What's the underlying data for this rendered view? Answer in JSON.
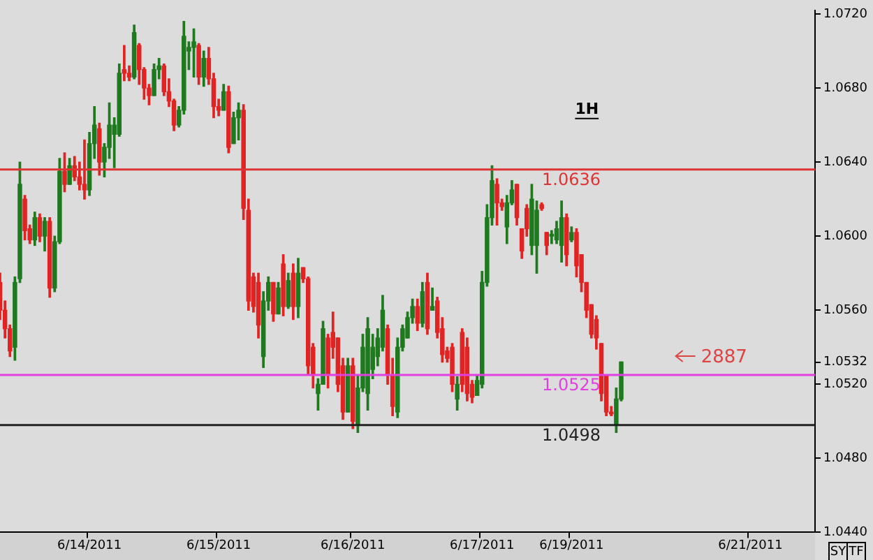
{
  "chart_data": {
    "type": "candlestick",
    "categories": [
      null,
      null,
      null,
      null,
      null,
      null,
      null,
      null,
      null,
      null,
      null,
      null,
      null,
      null,
      null,
      null,
      null,
      null,
      "6/14/2011",
      null,
      null,
      null,
      null,
      null,
      null,
      null,
      null,
      null,
      null,
      null,
      null,
      null,
      null,
      null,
      null,
      null,
      null,
      null,
      null,
      null,
      null,
      null,
      null,
      null,
      "6/15/2011",
      null,
      null,
      null,
      null,
      null,
      null,
      null,
      null,
      null,
      null,
      null,
      null,
      null,
      null,
      null,
      null,
      null,
      null,
      null,
      null,
      null,
      null,
      null,
      null,
      null,
      null,
      "6/16/2011",
      null,
      null,
      null,
      null,
      null,
      null,
      null,
      null,
      null,
      null,
      null,
      null,
      null,
      null,
      null,
      null,
      null,
      null,
      null,
      null,
      null,
      null,
      null,
      null,
      null,
      "6/17/2011",
      null,
      null,
      null,
      null,
      null,
      null,
      null,
      null,
      null,
      null,
      null,
      null,
      null,
      null,
      null,
      null,
      null,
      "6/19/2011",
      null,
      null,
      null,
      null,
      null,
      null,
      null,
      null,
      null,
      null,
      null,
      null,
      null,
      null,
      null,
      null,
      null,
      null,
      null,
      null,
      null,
      null,
      null,
      null,
      null,
      null,
      null,
      null,
      null,
      null,
      null,
      null,
      null,
      null,
      null,
      "6/21/2011",
      null,
      null,
      null,
      null,
      null,
      null,
      null,
      null,
      null,
      null,
      null,
      null,
      null
    ],
    "ohlc": [
      [
        1.0575,
        1.058,
        1.0555,
        1.056
      ],
      [
        1.056,
        1.0565,
        1.0545,
        1.055
      ],
      [
        1.055,
        1.0552,
        1.0535,
        1.0538
      ],
      [
        1.054,
        1.0578,
        1.0533,
        1.0575
      ],
      [
        1.0577,
        1.064,
        1.0575,
        1.0628
      ],
      [
        1.062,
        1.0622,
        1.0598,
        1.0603
      ],
      [
        1.0604,
        1.0606,
        1.0596,
        1.0598
      ],
      [
        1.0598,
        1.0613,
        1.0595,
        1.061
      ],
      [
        1.061,
        1.0612,
        1.0597,
        1.06
      ],
      [
        1.06,
        1.061,
        1.0592,
        1.0608
      ],
      [
        1.0608,
        1.061,
        1.0567,
        1.0572
      ],
      [
        1.0572,
        1.06,
        1.057,
        1.0597
      ],
      [
        1.0597,
        1.0642,
        1.0596,
        1.0635
      ],
      [
        1.0635,
        1.0645,
        1.0624,
        1.0628
      ],
      [
        1.0628,
        1.0642,
        1.0628,
        1.0638
      ],
      [
        1.0638,
        1.0643,
        1.063,
        1.0632
      ],
      [
        1.0632,
        1.064,
        1.0625,
        1.0628
      ],
      [
        1.0628,
        1.0652,
        1.062,
        1.0625
      ],
      [
        1.0625,
        1.0656,
        1.0622,
        1.065
      ],
      [
        1.065,
        1.067,
        1.0642,
        1.066
      ],
      [
        1.0658,
        1.0661,
        1.0633,
        1.064
      ],
      [
        1.064,
        1.065,
        1.0632,
        1.0648
      ],
      [
        1.0648,
        1.0672,
        1.0642,
        1.066
      ],
      [
        1.0655,
        1.0664,
        1.0637,
        1.066
      ],
      [
        1.0655,
        1.0693,
        1.0654,
        1.0688
      ],
      [
        1.069,
        1.0703,
        1.0684,
        1.0688
      ],
      [
        1.0688,
        1.0692,
        1.0684,
        1.0686
      ],
      [
        1.0686,
        1.0714,
        1.0685,
        1.071
      ],
      [
        1.0703,
        1.0704,
        1.0682,
        1.069
      ],
      [
        1.069,
        1.0691,
        1.0674,
        1.068
      ],
      [
        1.068,
        1.0682,
        1.0671,
        1.0676
      ],
      [
        1.0676,
        1.0693,
        1.0676,
        1.069
      ],
      [
        1.069,
        1.0696,
        1.0685,
        1.0692
      ],
      [
        1.0692,
        1.0693,
        1.0676,
        1.0678
      ],
      [
        1.0678,
        1.0685,
        1.067,
        1.0673
      ],
      [
        1.0673,
        1.0674,
        1.0657,
        1.066
      ],
      [
        1.066,
        1.067,
        1.0659,
        1.0668
      ],
      [
        1.0668,
        1.0716,
        1.0666,
        1.0708
      ],
      [
        1.07,
        1.0705,
        1.069,
        1.0702
      ],
      [
        1.0702,
        1.0712,
        1.0686,
        1.0705
      ],
      [
        1.0703,
        1.0704,
        1.0682,
        1.0686
      ],
      [
        1.0686,
        1.07,
        1.0681,
        1.0696
      ],
      [
        1.0696,
        1.0702,
        1.0682,
        1.0685
      ],
      [
        1.0685,
        1.0688,
        1.0664,
        1.067
      ],
      [
        1.067,
        1.0674,
        1.0665,
        1.0668
      ],
      [
        1.0668,
        1.0682,
        1.0668,
        1.0678
      ],
      [
        1.0678,
        1.0681,
        1.0645,
        1.0648
      ],
      [
        1.065,
        1.0667,
        1.065,
        1.0664
      ],
      [
        1.0664,
        1.0672,
        1.0652,
        1.0668
      ],
      [
        1.0668,
        1.0671,
        1.0609,
        1.0615
      ],
      [
        1.0614,
        1.062,
        1.056,
        1.0565
      ],
      [
        1.0578,
        1.058,
        1.0559,
        1.0562
      ],
      [
        1.0575,
        1.058,
        1.0545,
        1.0552
      ],
      [
        1.0535,
        1.057,
        1.0529,
        1.0565
      ],
      [
        1.0565,
        1.0578,
        1.056,
        1.0575
      ],
      [
        1.0575,
        1.0575,
        1.0554,
        1.0558
      ],
      [
        1.0558,
        1.0575,
        1.0558,
        1.0572
      ],
      [
        1.0585,
        1.059,
        1.0557,
        1.0562
      ],
      [
        1.0562,
        1.058,
        1.0561,
        1.0576
      ],
      [
        1.058,
        1.0585,
        1.0555,
        1.0562
      ],
      [
        1.0562,
        1.0588,
        1.0556,
        1.058
      ],
      [
        1.0583,
        1.0583,
        1.0575,
        1.0577
      ],
      [
        1.0577,
        1.0578,
        1.0525,
        1.053
      ],
      [
        1.054,
        1.0542,
        1.0518,
        1.0525
      ],
      [
        1.0515,
        1.0523,
        1.0506,
        1.052
      ],
      [
        1.052,
        1.0554,
        1.052,
        1.055
      ],
      [
        1.0545,
        1.0547,
        1.0518,
        1.0525
      ],
      [
        1.0548,
        1.0559,
        1.0534,
        1.054
      ],
      [
        1.0545,
        1.0545,
        1.0516,
        1.052
      ],
      [
        1.053,
        1.0534,
        1.0501,
        1.0505
      ],
      [
        1.0505,
        1.0534,
        1.0505,
        1.053
      ],
      [
        1.053,
        1.0534,
        1.0496,
        1.05
      ],
      [
        1.0498,
        1.0525,
        1.0494,
        1.0518
      ],
      [
        1.0518,
        1.0547,
        1.0516,
        1.054
      ],
      [
        1.0515,
        1.0556,
        1.0506,
        1.055
      ],
      [
        1.0528,
        1.0547,
        1.0523,
        1.054
      ],
      [
        1.0535,
        1.055,
        1.053,
        1.0545
      ],
      [
        1.054,
        1.0568,
        1.0538,
        1.056
      ],
      [
        1.055,
        1.0552,
        1.052,
        1.0525
      ],
      [
        1.0525,
        1.0534,
        1.0503,
        1.0508
      ],
      [
        1.0505,
        1.0545,
        1.0502,
        1.054
      ],
      [
        1.054,
        1.0552,
        1.0538,
        1.055
      ],
      [
        1.0545,
        1.0559,
        1.0545,
        1.0556
      ],
      [
        1.0556,
        1.0566,
        1.0553,
        1.0562
      ],
      [
        1.0562,
        1.0566,
        1.0549,
        1.0553
      ],
      [
        1.0553,
        1.0575,
        1.0551,
        1.057
      ],
      [
        1.0575,
        1.058,
        1.0547,
        1.055
      ],
      [
        1.056,
        1.0572,
        1.056,
        1.0562
      ],
      [
        1.0565,
        1.0567,
        1.0545,
        1.0548
      ],
      [
        1.055,
        1.0556,
        1.0532,
        1.0536
      ],
      [
        1.0538,
        1.054,
        1.0532,
        1.0534
      ],
      [
        1.054,
        1.0542,
        1.0516,
        1.052
      ],
      [
        1.0512,
        1.0524,
        1.0506,
        1.052
      ],
      [
        1.0548,
        1.055,
        1.0516,
        1.052
      ],
      [
        1.054,
        1.0545,
        1.0511,
        1.0515
      ],
      [
        1.052,
        1.0522,
        1.051,
        1.0513
      ],
      [
        1.0514,
        1.0525,
        1.0514,
        1.0522
      ],
      [
        1.052,
        1.0581,
        1.0518,
        1.0575
      ],
      [
        1.0575,
        1.0617,
        1.0573,
        1.061
      ],
      [
        1.061,
        1.0638,
        1.0606,
        1.063
      ],
      [
        1.0628,
        1.0631,
        1.0606,
        1.0618
      ],
      [
        1.0618,
        1.062,
        1.0614,
        1.0616
      ],
      [
        1.0605,
        1.0622,
        1.0596,
        1.0618
      ],
      [
        1.0618,
        1.063,
        1.0617,
        1.0625
      ],
      [
        1.0628,
        1.0628,
        1.0606,
        1.061
      ],
      [
        1.0604,
        1.0604,
        1.0588,
        1.0592
      ],
      [
        1.0615,
        1.0617,
        1.06,
        1.0604
      ],
      [
        1.0595,
        1.0628,
        1.059,
        1.062
      ],
      [
        1.0595,
        1.0619,
        1.058,
        1.0614
      ],
      [
        1.0617,
        1.0618,
        1.0614,
        1.0615
      ],
      [
        1.0602,
        1.0602,
        1.059,
        1.0595
      ],
      [
        1.06,
        1.0603,
        1.0596,
        1.0601
      ],
      [
        1.0598,
        1.0608,
        1.0596,
        1.0604
      ],
      [
        1.0595,
        1.0619,
        1.0586,
        1.061
      ],
      [
        1.061,
        1.0612,
        1.0584,
        1.059
      ],
      [
        1.0598,
        1.0605,
        1.0597,
        1.0602
      ],
      [
        1.0602,
        1.0604,
        1.0578,
        1.0584
      ],
      [
        1.059,
        1.059,
        1.057,
        1.0575
      ],
      [
        1.0575,
        1.0575,
        1.0556,
        1.056
      ],
      [
        1.0563,
        1.0563,
        1.0545,
        1.0547
      ],
      [
        1.0555,
        1.0557,
        1.0539,
        1.0545
      ],
      [
        1.0542,
        1.0542,
        1.0511,
        1.0515
      ],
      [
        1.0525,
        1.0525,
        1.0503,
        1.0505
      ],
      [
        1.0505,
        1.0508,
        1.0503,
        1.0504
      ],
      [
        1.0498,
        1.0518,
        1.0494,
        1.0512
      ],
      [
        1.0512,
        1.0532,
        1.0511,
        1.0532
      ],
      null,
      null,
      null,
      null,
      null,
      null,
      null,
      null,
      null,
      null,
      null,
      null,
      null,
      null,
      null,
      null,
      null,
      null,
      null,
      null,
      null,
      null,
      null,
      null,
      null,
      null,
      null,
      null,
      null,
      null,
      null,
      null,
      null,
      null,
      null,
      null,
      null,
      null,
      null
    ],
    "colors": [
      "#e02424",
      "#e02424",
      "#e02424",
      "#1f7a1f",
      "#1f7a1f",
      "#e02424",
      "#e02424",
      "#1f7a1f",
      "#e02424",
      "#1f7a1f",
      "#e02424",
      "#1f7a1f",
      "#1f7a1f",
      "#e02424",
      "#1f7a1f",
      "#e02424",
      "#e02424",
      "#e02424",
      "#1f7a1f",
      "#1f7a1f",
      "#e02424",
      "#1f7a1f",
      "#1f7a1f",
      "#1f7a1f",
      "#1f7a1f",
      "#e02424",
      "#e02424",
      "#1f7a1f",
      "#e02424",
      "#e02424",
      "#e02424",
      "#1f7a1f",
      "#1f7a1f",
      "#e02424",
      "#e02424",
      "#e02424",
      "#1f7a1f",
      "#1f7a1f",
      "#1f7a1f",
      "#1f7a1f",
      "#e02424",
      "#1f7a1f",
      "#e02424",
      "#e02424",
      "#e02424",
      "#1f7a1f",
      "#e02424",
      "#1f7a1f",
      "#1f7a1f",
      "#e02424",
      "#e02424",
      "#e02424",
      "#e02424",
      "#1f7a1f",
      "#1f7a1f",
      "#e02424",
      "#1f7a1f",
      "#e02424",
      "#1f7a1f",
      "#e02424",
      "#1f7a1f",
      "#e02424",
      "#e02424",
      "#e02424",
      "#1f7a1f",
      "#1f7a1f",
      "#e02424",
      "#e02424",
      "#e02424",
      "#e02424",
      "#1f7a1f",
      "#e02424",
      "#1f7a1f",
      "#1f7a1f",
      "#1f7a1f",
      "#1f7a1f",
      "#1f7a1f",
      "#1f7a1f",
      "#e02424",
      "#e02424",
      "#1f7a1f",
      "#1f7a1f",
      "#1f7a1f",
      "#1f7a1f",
      "#e02424",
      "#1f7a1f",
      "#e02424",
      "#1f7a1f",
      "#e02424",
      "#e02424",
      "#e02424",
      "#e02424",
      "#1f7a1f",
      "#e02424",
      "#e02424",
      "#e02424",
      "#1f7a1f",
      "#1f7a1f",
      "#1f7a1f",
      "#1f7a1f",
      "#e02424",
      "#e02424",
      "#1f7a1f",
      "#1f7a1f",
      "#e02424",
      "#e02424",
      "#e02424",
      "#1f7a1f",
      "#1f7a1f",
      "#e02424",
      "#e02424",
      "#1f7a1f",
      "#1f7a1f",
      "#1f7a1f",
      "#e02424",
      "#1f7a1f",
      "#e02424",
      "#e02424",
      "#e02424",
      "#e02424",
      "#e02424",
      "#e02424",
      "#e02424",
      "#e02424",
      "#1f7a1f",
      "#1f7a1f",
      null,
      null,
      null,
      null,
      null,
      null,
      null,
      null,
      null,
      null,
      null,
      null,
      null,
      null,
      null,
      null,
      null,
      null,
      null,
      null,
      null,
      null,
      null,
      null,
      null,
      null,
      null,
      null,
      null,
      null,
      null,
      null,
      null,
      null,
      null,
      null,
      null,
      null,
      null
    ],
    "ylim": [
      1.044,
      1.0722
    ],
    "yticks": [
      {
        "value": 1.044,
        "label": "1.0440"
      },
      {
        "value": 1.048,
        "label": "1.0480"
      },
      {
        "value": 1.052,
        "label": "1.0520"
      },
      {
        "value": 1.0532,
        "label": "1.0532"
      },
      {
        "value": 1.056,
        "label": "1.0560"
      },
      {
        "value": 1.06,
        "label": "1.0600"
      },
      {
        "value": 1.064,
        "label": "1.0640"
      },
      {
        "value": 1.068,
        "label": "1.0680"
      },
      {
        "value": 1.072,
        "label": "1.0720"
      }
    ],
    "ref_lines": [
      {
        "axis": "y",
        "value": 1.0636,
        "label": "1.0636",
        "color": "#dd3333"
      },
      {
        "axis": "y",
        "value": 1.0525,
        "label": "1.0525",
        "color": "#e040e0"
      },
      {
        "axis": "y",
        "value": 1.0498,
        "label": "1.0498",
        "color": "#222222"
      }
    ],
    "annotations": [
      "1H",
      "2887",
      "SY",
      "TF"
    ],
    "grid": false,
    "legend": false
  }
}
